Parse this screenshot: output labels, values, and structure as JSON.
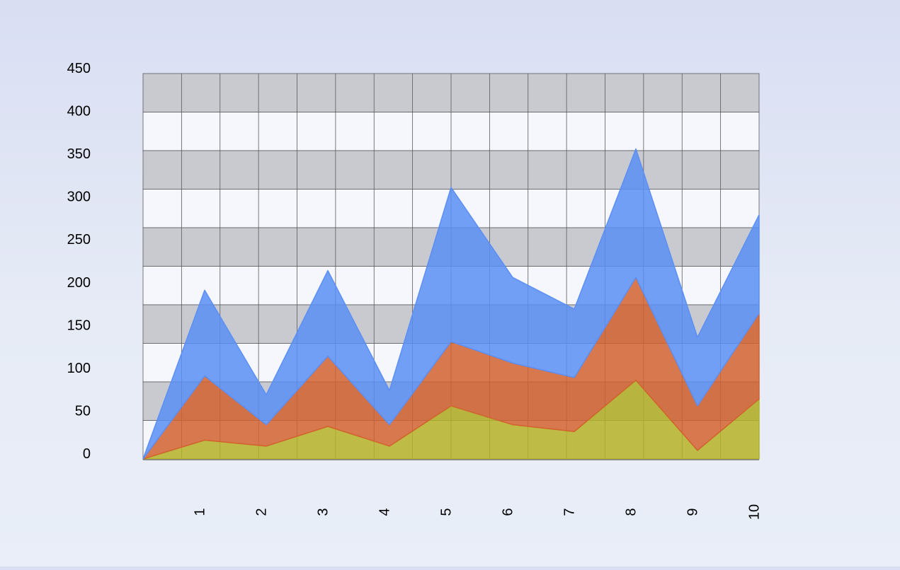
{
  "chart_data": {
    "type": "area",
    "stacked": true,
    "x": [
      "0",
      "1",
      "2",
      "3",
      "4",
      "5",
      "6",
      "7",
      "8",
      "9",
      "10"
    ],
    "x_tick_labels": [
      "1",
      "2",
      "3",
      "4",
      "5",
      "6",
      "7",
      "8",
      "9",
      "10"
    ],
    "series": [
      {
        "values": [
          0,
          22,
          15,
          38,
          15,
          62,
          40,
          32,
          92,
          10,
          70
        ],
        "color": "#b4b226"
      },
      {
        "values": [
          0,
          75,
          25,
          82,
          25,
          75,
          72,
          63,
          120,
          52,
          100
        ],
        "color": "#d2622f"
      },
      {
        "values": [
          0,
          100,
          35,
          100,
          40,
          180,
          100,
          80,
          150,
          80,
          115
        ],
        "color": "#5b8ff5"
      }
    ],
    "y_ticks": [
      0,
      50,
      100,
      150,
      200,
      250,
      300,
      350,
      400,
      450
    ],
    "ylim": [
      0,
      450
    ],
    "grid": true,
    "grid_style": "alternating gray and white horizontal bands with vertical gridlines",
    "legend": "none",
    "band_colors": [
      "#c9cad0",
      "#f5f7fd"
    ],
    "grid_line_color": "#5a5a5a",
    "background_color": "#dde2f4"
  }
}
